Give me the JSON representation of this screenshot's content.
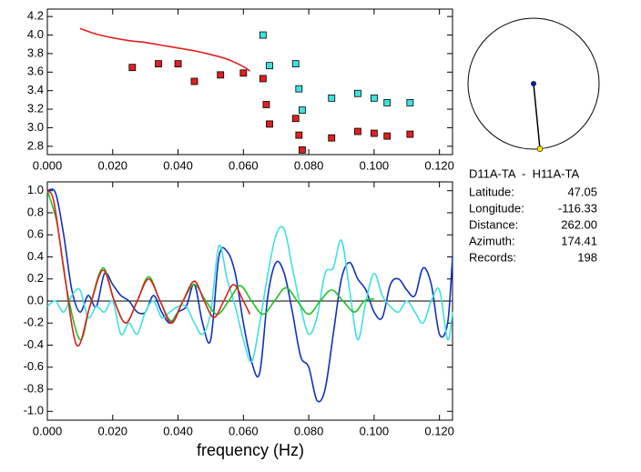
{
  "chart_data": [
    {
      "type": "scatter",
      "xlim": [
        0,
        0.124
      ],
      "ylim": [
        2.71,
        4.28
      ],
      "xticks": [
        {
          "value": 0,
          "label": "0.000"
        },
        {
          "value": 0.02,
          "label": "0.020"
        },
        {
          "value": 0.04,
          "label": "0.040"
        },
        {
          "value": 0.06,
          "label": "0.060"
        },
        {
          "value": 0.08,
          "label": "0.080"
        },
        {
          "value": 0.1,
          "label": "0.100"
        },
        {
          "value": 0.12,
          "label": "0.120"
        }
      ],
      "yticks": [
        2.8,
        {
          "value": 3.0,
          "label": "3.0"
        },
        3.2,
        3.4,
        3.6,
        3.8,
        {
          "value": 4.0,
          "label": "4.0"
        },
        4.2
      ],
      "series": [
        {
          "style": "line",
          "color": "#e02020",
          "x": [
            0.01,
            0.015,
            0.02,
            0.025,
            0.03,
            0.035,
            0.04,
            0.045,
            0.05,
            0.055,
            0.06,
            0.062
          ],
          "values": [
            4.07,
            4.01,
            3.97,
            3.94,
            3.92,
            3.89,
            3.86,
            3.83,
            3.79,
            3.74,
            3.66,
            3.61
          ]
        },
        {
          "style": "square",
          "color": "#e02020",
          "x": [
            0.026,
            0.034,
            0.04,
            0.045,
            0.053,
            0.06,
            0.066,
            0.067,
            0.068,
            0.076,
            0.077,
            0.078,
            0.087,
            0.095,
            0.1,
            0.104,
            0.111
          ],
          "values": [
            3.65,
            3.69,
            3.69,
            3.5,
            3.57,
            3.59,
            3.53,
            3.25,
            3.04,
            3.1,
            2.92,
            2.76,
            2.89,
            2.96,
            2.94,
            2.91,
            2.93
          ]
        },
        {
          "style": "square",
          "color": "#40e0e0",
          "x": [
            0.066,
            0.068,
            0.076,
            0.077,
            0.078,
            0.087,
            0.095,
            0.1,
            0.104,
            0.111
          ],
          "values": [
            4.0,
            3.67,
            3.69,
            3.42,
            3.19,
            3.32,
            3.37,
            3.32,
            3.27,
            3.27
          ]
        }
      ]
    },
    {
      "type": "line",
      "x_label": "frequency (Hz)",
      "xlim": [
        0,
        0.124
      ],
      "ylim": [
        -1.08,
        1.08
      ],
      "xticks": [
        {
          "value": 0,
          "label": "0.000"
        },
        {
          "value": 0.02,
          "label": "0.020"
        },
        {
          "value": 0.04,
          "label": "0.040"
        },
        {
          "value": 0.06,
          "label": "0.060"
        },
        {
          "value": 0.08,
          "label": "0.080"
        },
        {
          "value": 0.1,
          "label": "0.100"
        },
        {
          "value": 0.12,
          "label": "0.120"
        }
      ],
      "yticks": [
        {
          "value": 1.0,
          "label": "1.0"
        },
        {
          "value": 0.8,
          "label": "0.8"
        },
        {
          "value": 0.6,
          "label": "0.6"
        },
        {
          "value": 0.4,
          "label": "0.4"
        },
        {
          "value": 0.2,
          "label": "0.2"
        },
        {
          "value": 0,
          "label": "0.0"
        },
        {
          "value": -0.2,
          "label": "-0.2"
        },
        {
          "value": -0.4,
          "label": "-0.4"
        },
        {
          "value": -0.6,
          "label": "-0.6"
        },
        {
          "value": -0.8,
          "label": "-0.8"
        },
        {
          "value": -1.0,
          "label": "-1.0"
        }
      ],
      "series": [
        {
          "style": "line",
          "color": "#1030c0",
          "x": [
            0,
            0.0025,
            0.005,
            0.0075,
            0.01,
            0.0125,
            0.015,
            0.0175,
            0.02,
            0.0225,
            0.025,
            0.0275,
            0.03,
            0.0325,
            0.035,
            0.0375,
            0.04,
            0.0425,
            0.045,
            0.0475,
            0.05,
            0.0525,
            0.055,
            0.0575,
            0.06,
            0.0625,
            0.065,
            0.0675,
            0.07,
            0.0725,
            0.075,
            0.0775,
            0.08,
            0.0825,
            0.085,
            0.0875,
            0.09,
            0.0925,
            0.095,
            0.0975,
            0.1,
            0.1025,
            0.105,
            0.1075,
            0.11,
            0.1125,
            0.115,
            0.1175,
            0.12,
            0.1225,
            0.124
          ],
          "values": [
            1.0,
            0.98,
            0.6,
            0.1,
            -0.1,
            0.05,
            -0.05,
            0.25,
            0.15,
            0.05,
            0.0,
            -0.1,
            -0.1,
            0.05,
            -0.1,
            -0.2,
            -0.1,
            -0.05,
            0.15,
            -0.2,
            -0.35,
            0.4,
            0.45,
            0.25,
            -0.2,
            -0.55,
            -0.65,
            0.05,
            0.35,
            0.25,
            -0.1,
            -0.5,
            -0.6,
            -0.9,
            -0.8,
            -0.3,
            0.2,
            0.35,
            0.2,
            0.1,
            -0.1,
            -0.15,
            0.15,
            0.2,
            0.1,
            0.05,
            0.3,
            0.15,
            -0.3,
            -0.2,
            0.4
          ]
        },
        {
          "style": "line",
          "color": "#40e0e0",
          "x": [
            0,
            0.0025,
            0.005,
            0.0075,
            0.01,
            0.0125,
            0.015,
            0.0175,
            0.02,
            0.0225,
            0.025,
            0.0275,
            0.03,
            0.0325,
            0.035,
            0.0375,
            0.04,
            0.0425,
            0.045,
            0.0475,
            0.05,
            0.0525,
            0.055,
            0.0575,
            0.06,
            0.0625,
            0.065,
            0.0675,
            0.07,
            0.0725,
            0.075,
            0.0775,
            0.08,
            0.0825,
            0.085,
            0.0875,
            0.09,
            0.0925,
            0.095,
            0.0975,
            0.1,
            0.1025,
            0.105,
            0.1075,
            0.11,
            0.1125,
            0.115,
            0.1175,
            0.12,
            0.1225,
            0.124
          ],
          "values": [
            -0.05,
            0.0,
            -0.1,
            0.05,
            0.1,
            -0.15,
            -0.05,
            -0.1,
            0.0,
            -0.3,
            -0.2,
            -0.3,
            -0.1,
            0.0,
            -0.15,
            -0.1,
            -0.05,
            -0.05,
            -0.2,
            -0.3,
            -0.1,
            0.5,
            0.2,
            -0.05,
            -0.35,
            -0.55,
            -0.2,
            0.25,
            0.6,
            0.65,
            0.3,
            -0.05,
            -0.3,
            -0.15,
            0.25,
            0.3,
            0.55,
            0.1,
            -0.35,
            0.0,
            0.25,
            0.05,
            -0.05,
            -0.1,
            0.0,
            -0.1,
            -0.2,
            0.0,
            0.1,
            -0.35,
            -0.1
          ]
        },
        {
          "style": "line",
          "color": "#20c020",
          "x": [
            0,
            0.003,
            0.006,
            0.01,
            0.013,
            0.017,
            0.0205,
            0.024,
            0.0275,
            0.031,
            0.0345,
            0.038,
            0.0415,
            0.045,
            0.0485,
            0.052,
            0.0555,
            0.059,
            0.0625,
            0.066,
            0.0695,
            0.073,
            0.0765,
            0.08,
            0.0835,
            0.087,
            0.0905,
            0.094,
            0.097,
            0.1
          ],
          "values": [
            1.0,
            0.7,
            0.1,
            -0.35,
            -0.05,
            0.3,
            0.0,
            -0.2,
            0.0,
            0.22,
            0.0,
            -0.18,
            0.0,
            0.15,
            0.0,
            -0.12,
            0.0,
            0.14,
            0.0,
            -0.12,
            0.0,
            0.12,
            0.0,
            -0.12,
            0.0,
            0.1,
            0.0,
            -0.1,
            0.0,
            0.02
          ]
        },
        {
          "style": "line",
          "color": "#e02020",
          "x": [
            0,
            0.002,
            0.005,
            0.009,
            0.013,
            0.017,
            0.0205,
            0.024,
            0.0275,
            0.031,
            0.0345,
            0.038,
            0.0415,
            0.045,
            0.048,
            0.051,
            0.054,
            0.057,
            0.06,
            0.062
          ],
          "values": [
            1.0,
            0.9,
            0.3,
            -0.4,
            -0.05,
            0.28,
            0.0,
            -0.2,
            0.0,
            0.2,
            0.0,
            -0.2,
            0.0,
            0.18,
            0.0,
            -0.15,
            0.0,
            0.15,
            0.0,
            -0.12
          ]
        }
      ]
    }
  ],
  "station": {
    "pair": "D11A-TA  -  H11A-TA",
    "rows": [
      {
        "label": "Latitude:",
        "value": "47.05"
      },
      {
        "label": "Longitude:",
        "value": "-116.33"
      },
      {
        "label": "Distance:",
        "value": "262.00"
      },
      {
        "label": "Azimuth:",
        "value": "174.41"
      },
      {
        "label": "Records:",
        "value": "198"
      }
    ]
  }
}
